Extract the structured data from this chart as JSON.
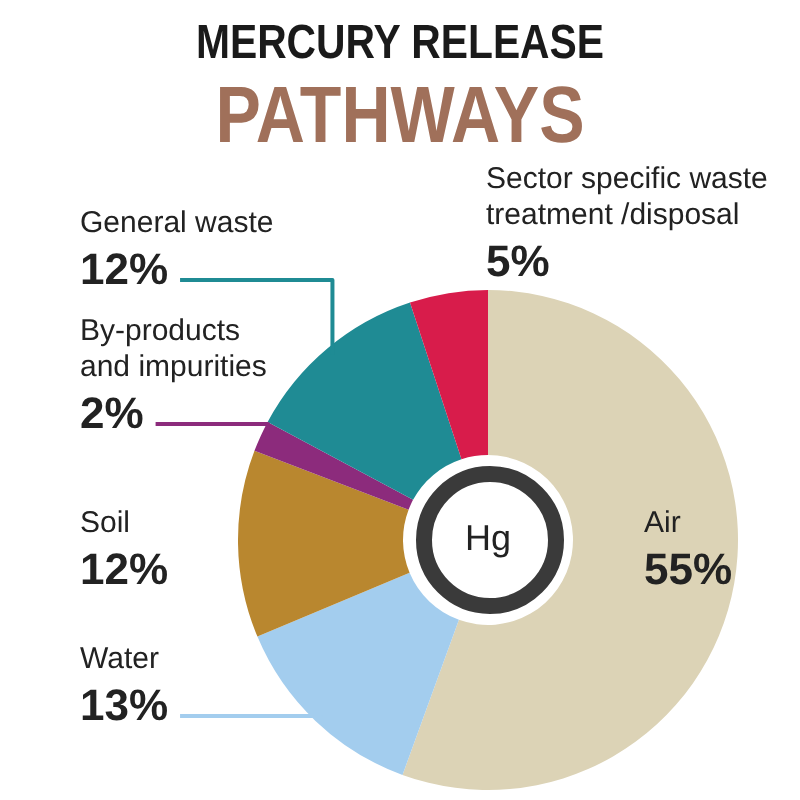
{
  "chart_data": {
    "type": "donut",
    "title": "MERCURY RELEASE",
    "subtitle": "PATHWAYS",
    "categories": [
      "Air",
      "Water",
      "Soil",
      "By-products and impurities",
      "General waste",
      "Sector specific waste treatment /disposal"
    ],
    "values": [
      55,
      13,
      12,
      2,
      12,
      5
    ],
    "value_labels": [
      "55%",
      "13%",
      "12%",
      "2%",
      "12%",
      "5%"
    ],
    "colors": [
      "#dcd3b6",
      "#a3cdee",
      "#b9872f",
      "#8c2b7c",
      "#1f8b94",
      "#d81c4b"
    ],
    "annotations": [
      "Hg"
    ],
    "legend": false
  }
}
